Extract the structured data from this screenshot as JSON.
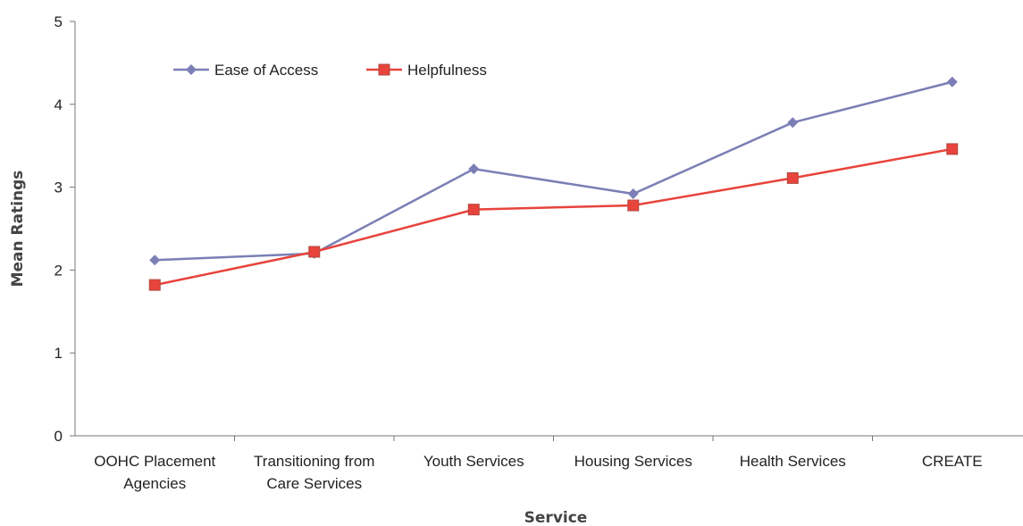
{
  "chart_data": {
    "type": "line",
    "title": "",
    "xlabel": "Service",
    "ylabel": "Mean Ratings",
    "categories": [
      [
        "OOHC Placement",
        "Agencies"
      ],
      [
        "Transitioning from",
        "Care Services"
      ],
      [
        "Youth Services"
      ],
      [
        "Housing Services"
      ],
      [
        "Health Services"
      ],
      [
        "CREATE"
      ]
    ],
    "ylim": [
      0,
      5
    ],
    "yticks": [
      "0",
      "1",
      "2",
      "3",
      "4",
      "5"
    ],
    "grid": false,
    "legend": "top-left",
    "series": [
      {
        "name": "Ease of Access",
        "color": "#7b7fb5",
        "marker": "diamond",
        "values": [
          2.12,
          2.2,
          3.22,
          2.92,
          3.78,
          4.27
        ]
      },
      {
        "name": "Helpfulness",
        "color": "#e8433c",
        "marker": "square",
        "values": [
          1.82,
          2.22,
          2.73,
          2.78,
          3.11,
          3.46
        ]
      }
    ]
  }
}
